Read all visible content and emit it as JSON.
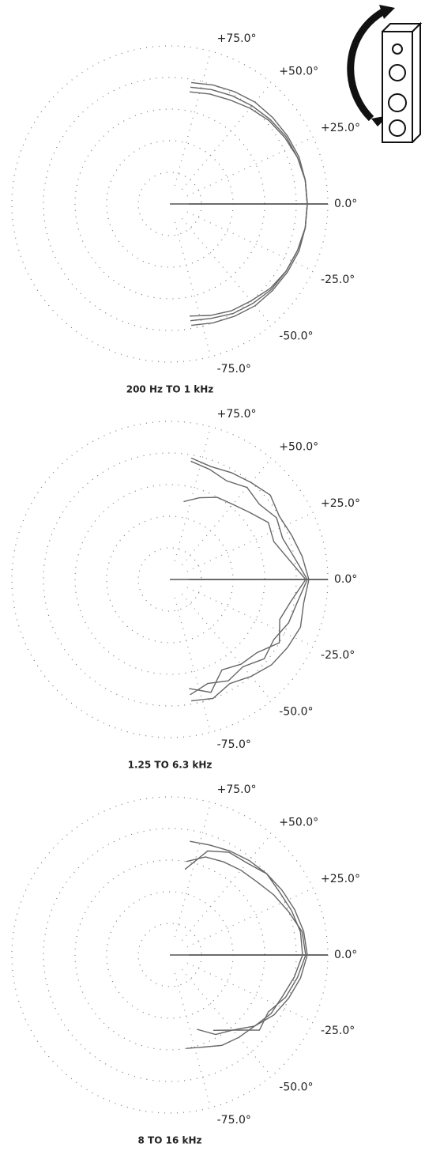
{
  "chart_data": [
    {
      "type": "polar",
      "title": "200 Hz TO 1 kHz",
      "theta": [
        -80,
        -70,
        -60,
        -50,
        -40,
        -30,
        -20,
        -10,
        0,
        10,
        20,
        30,
        40,
        50,
        60,
        70,
        80
      ],
      "rlim": [
        0,
        1
      ],
      "rticks": [
        0.2,
        0.4,
        0.6,
        0.8,
        1.0
      ],
      "thetaticks": [
        {
          "value": 75,
          "label": "+75.0°"
        },
        {
          "value": 50,
          "label": "+50.0°"
        },
        {
          "value": 25,
          "label": "+25.0°"
        },
        {
          "value": 0,
          "label": "0.0°"
        },
        {
          "value": -25,
          "label": "-25.0°"
        },
        {
          "value": -50,
          "label": "-50.0°"
        },
        {
          "value": -75,
          "label": "-75.0°"
        }
      ],
      "series": [
        {
          "color": "#666",
          "values": [
            0.78,
            0.8,
            0.82,
            0.84,
            0.85,
            0.86,
            0.87,
            0.87,
            0.87,
            0.87,
            0.87,
            0.86,
            0.85,
            0.84,
            0.82,
            0.8,
            0.78
          ]
        },
        {
          "color": "#666",
          "values": [
            0.75,
            0.77,
            0.8,
            0.82,
            0.84,
            0.85,
            0.86,
            0.87,
            0.87,
            0.87,
            0.86,
            0.85,
            0.83,
            0.81,
            0.79,
            0.77,
            0.75
          ]
        },
        {
          "color": "#666",
          "values": [
            0.72,
            0.75,
            0.78,
            0.8,
            0.83,
            0.85,
            0.86,
            0.87,
            0.87,
            0.87,
            0.86,
            0.84,
            0.82,
            0.79,
            0.76,
            0.74,
            0.72
          ]
        }
      ]
    },
    {
      "type": "polar",
      "title": "1.25 TO 6.3 kHz",
      "theta": [
        -80,
        -70,
        -60,
        -50,
        -40,
        -30,
        -20,
        -10,
        0,
        10,
        20,
        30,
        40,
        50,
        60,
        70,
        80
      ],
      "rlim": [
        0,
        1
      ],
      "rticks": [
        0.2,
        0.4,
        0.6,
        0.8,
        1.0
      ],
      "thetaticks": [
        {
          "value": 75,
          "label": "+75.0°"
        },
        {
          "value": 50,
          "label": "+50.0°"
        },
        {
          "value": 25,
          "label": "+25.0°"
        },
        {
          "value": 0,
          "label": "0.0°"
        },
        {
          "value": -25,
          "label": "-25.0°"
        },
        {
          "value": -50,
          "label": "-50.0°"
        },
        {
          "value": -75,
          "label": "-75.0°"
        }
      ],
      "series": [
        {
          "color": "#666",
          "values": [
            0.78,
            0.8,
            0.76,
            0.8,
            0.84,
            0.86,
            0.88,
            0.86,
            0.88,
            0.85,
            0.82,
            0.8,
            0.83,
            0.8,
            0.78,
            0.76,
            0.78
          ]
        },
        {
          "color": "#666",
          "values": [
            0.74,
            0.7,
            0.74,
            0.72,
            0.78,
            0.76,
            0.8,
            0.82,
            0.87,
            0.8,
            0.76,
            0.78,
            0.74,
            0.76,
            0.72,
            0.74,
            0.76
          ]
        },
        {
          "color": "#666",
          "values": [
            0.7,
            0.76,
            0.66,
            0.7,
            0.72,
            0.8,
            0.74,
            0.78,
            0.86,
            0.76,
            0.7,
            0.72,
            0.66,
            0.62,
            0.6,
            0.55,
            0.5
          ]
        }
      ]
    },
    {
      "type": "polar",
      "title": "8 TO 16 kHz",
      "theta": [
        -80,
        -70,
        -60,
        -50,
        -40,
        -30,
        -20,
        -10,
        0,
        10,
        20,
        30,
        40,
        50,
        60,
        70,
        80
      ],
      "rlim": [
        0,
        1
      ],
      "rticks": [
        0.2,
        0.4,
        0.6,
        0.8,
        1.0
      ],
      "thetaticks": [
        {
          "value": 75,
          "label": "+75.0°"
        },
        {
          "value": 50,
          "label": "+50.0°"
        },
        {
          "value": 25,
          "label": "+25.0°"
        },
        {
          "value": 0,
          "label": "0.0°"
        },
        {
          "value": -25,
          "label": "-25.0°"
        },
        {
          "value": -50,
          "label": "-50.0°"
        },
        {
          "value": -75,
          "label": "-75.0°"
        }
      ],
      "series": [
        {
          "color": "#666",
          "values": [
            null,
            null,
            0.55,
            0.62,
            0.7,
            0.76,
            0.8,
            0.84,
            0.87,
            0.86,
            0.84,
            0.82,
            0.8,
            0.78,
            0.76,
            0.74,
            0.73
          ]
        },
        {
          "color": "#666",
          "values": [
            null,
            0.5,
            0.58,
            0.62,
            0.74,
            0.72,
            0.78,
            0.82,
            0.86,
            0.85,
            0.8,
            0.76,
            0.72,
            0.7,
            0.68,
            0.66,
            0.6
          ]
        },
        {
          "color": "#666",
          "values": [
            0.6,
            0.62,
            0.66,
            0.68,
            0.7,
            0.74,
            0.76,
            0.8,
            0.84,
            0.84,
            0.82,
            0.8,
            0.8,
            0.76,
            0.75,
            0.7,
            0.55
          ]
        }
      ]
    }
  ]
}
